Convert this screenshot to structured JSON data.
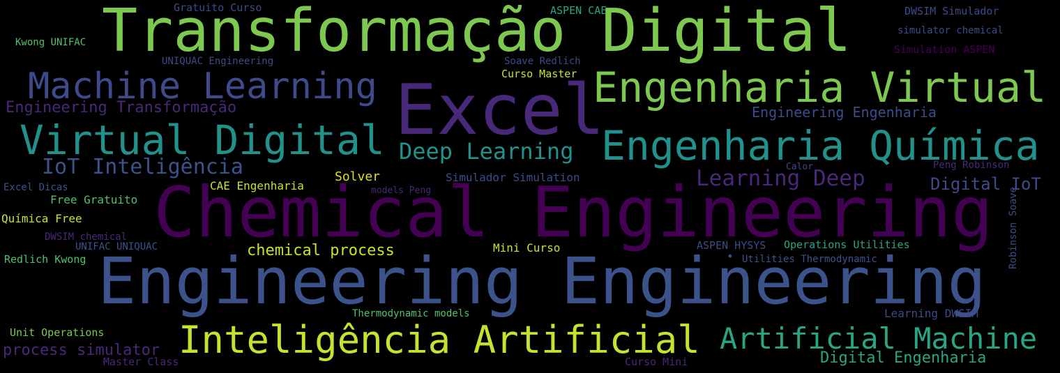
{
  "colors": {
    "background": "#000000",
    "bright_green": "#7dc94f",
    "yellow_green": "#c8e12f",
    "teal": "#21918c",
    "teal_green": "#2aa584",
    "green": "#4fc26a",
    "blue": "#3b528b",
    "slate_blue": "#3e4a89",
    "purple": "#440154",
    "violet": "#482878"
  },
  "words": [
    {
      "text": "Transformação Digital",
      "color": "#7dc94f"
    },
    {
      "text": "Chemical Engineering",
      "color": "#440154"
    },
    {
      "text": "Engineering Engineering",
      "color": "#3b528b"
    },
    {
      "text": "Excel",
      "color": "#482878"
    },
    {
      "text": "Engenharia Virtual",
      "color": "#7dc94f"
    },
    {
      "text": "Engenharia Química",
      "color": "#21918c"
    },
    {
      "text": "Virtual Digital",
      "color": "#21918c"
    },
    {
      "text": "Machine Learning",
      "color": "#3e4a89"
    },
    {
      "text": "Inteligência Artificial",
      "color": "#c8e12f"
    },
    {
      "text": "Artificial Machine",
      "color": "#2aa584"
    },
    {
      "text": "Deep Learning",
      "color": "#21918c"
    },
    {
      "text": "IoT Inteligência",
      "color": "#3b528b"
    },
    {
      "text": "Learning Deep",
      "color": "#482878"
    },
    {
      "text": "Engineering Transformação",
      "color": "#482878"
    },
    {
      "text": "Engineering Engenharia",
      "color": "#3e4a89"
    },
    {
      "text": "Digital IoT",
      "color": "#3e4a89"
    },
    {
      "text": "chemical process",
      "color": "#c8e12f"
    },
    {
      "text": "Digital Engenharia",
      "color": "#2aa584"
    },
    {
      "text": "process simulator",
      "color": "#482878"
    },
    {
      "text": "Solver",
      "color": "#d8e21c"
    },
    {
      "text": "CAE Engenharia",
      "color": "#c8e12f"
    },
    {
      "text": "Simulador Simulation",
      "color": "#3e4a89"
    },
    {
      "text": "Química Free",
      "color": "#c8e12f"
    },
    {
      "text": "Free Gratuito",
      "color": "#4fc26a"
    },
    {
      "text": "Excel Dicas",
      "color": "#3b528b"
    },
    {
      "text": "DWSIM chemical",
      "color": "#482878"
    },
    {
      "text": "UNIFAC UNIQUAC",
      "color": "#3b528b"
    },
    {
      "text": "Redlich Kwong",
      "color": "#4fc26a"
    },
    {
      "text": "Mini Curso",
      "color": "#c8e12f"
    },
    {
      "text": "ASPEN HYSYS",
      "color": "#3e4a89"
    },
    {
      "text": "Operations Utilities",
      "color": "#2aa584"
    },
    {
      "text": "Utilities Thermodynamic",
      "color": "#3b528b"
    },
    {
      "text": "Thermodynamic models",
      "color": "#4fc26a"
    },
    {
      "text": "Learning DWSIM",
      "color": "#3e4a89"
    },
    {
      "text": "Unit Operations",
      "color": "#7dc94f"
    },
    {
      "text": "Master Class",
      "color": "#482878"
    },
    {
      "text": "Curso Mini",
      "color": "#482878"
    },
    {
      "text": "Gratuito Curso",
      "color": "#3e4a89"
    },
    {
      "text": "ASPEN CAE",
      "color": "#2aa584"
    },
    {
      "text": "DWSIM Simulador",
      "color": "#3e4a89"
    },
    {
      "text": "simulator chemical",
      "color": "#3e4a89"
    },
    {
      "text": "Simulation ASPEN",
      "color": "#440154"
    },
    {
      "text": "Kwong UNIFAC",
      "color": "#4fc26a"
    },
    {
      "text": "UNIQUAC Engineering",
      "color": "#3e4a89"
    },
    {
      "text": "Soave Redlich",
      "color": "#3e4a89"
    },
    {
      "text": "Curso Master",
      "color": "#c8e12f"
    },
    {
      "text": "Calor",
      "color": "#3e4a89"
    },
    {
      "text": "Peng Robinson",
      "color": "#482878"
    },
    {
      "text": "models Peng",
      "color": "#482878"
    },
    {
      "text": "Robinson Soave",
      "color": "#3e4a89"
    },
    {
      "text": "•",
      "color": "#3b528b"
    }
  ]
}
